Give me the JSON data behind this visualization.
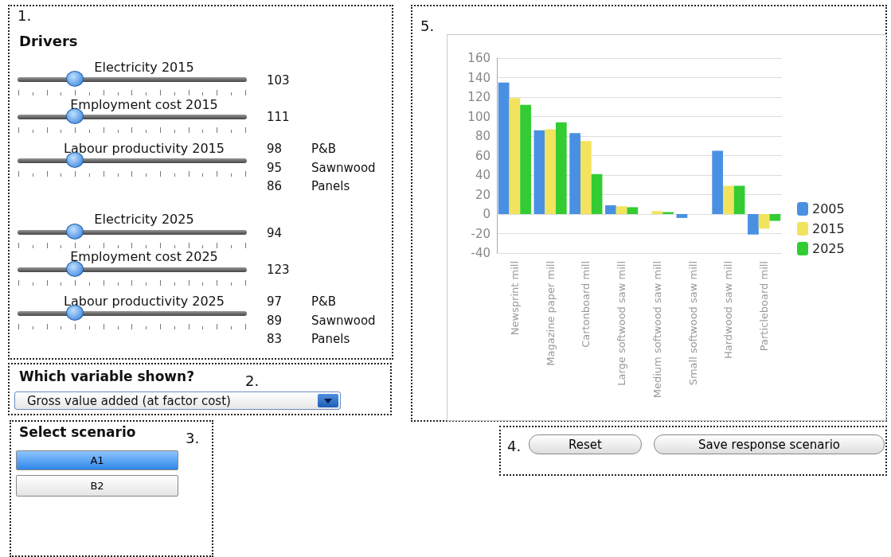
{
  "chart_data": [
    {
      "type": "other",
      "title": "Drivers",
      "annotations": [
        "1.",
        "Electricity 2015",
        "103",
        "Employment cost 2015",
        "111",
        "Labour productivity 2015",
        "98",
        "P&B",
        "95",
        "Sawnwood",
        "86",
        "Panels",
        "Electricity 2025",
        "94",
        "Employment cost 2025",
        "123",
        "Labour productivity 2025",
        "97",
        "P&B",
        "89",
        "Sawnwood",
        "83",
        "Panels"
      ]
    },
    {
      "type": "other",
      "title": "Which variable shown?",
      "annotations": [
        "2.",
        "Gross value added (at factor cost)"
      ]
    },
    {
      "type": "other",
      "title": "Select scenario",
      "annotations": [
        "3.",
        "A1",
        "B2"
      ]
    },
    {
      "type": "other",
      "annotations": [
        "4.",
        "Reset",
        "Save response scenario"
      ]
    },
    {
      "type": "bar",
      "annotations": [
        "5."
      ],
      "categories": [
        "Newsprint mill",
        "Magazine paper mill",
        "Cartonboard mill",
        "Large softwood saw mill",
        "Medium softwood saw mill",
        "Small softwood saw mill",
        "Hardwood saw mill",
        "Particleboard mill"
      ],
      "series": [
        {
          "name": "2005",
          "color": "#4a90e2",
          "values": [
            135,
            86,
            83,
            9,
            0,
            -4,
            65,
            -21
          ]
        },
        {
          "name": "2015",
          "color": "#f2e35e",
          "values": [
            119,
            87,
            75,
            8,
            3,
            0,
            29,
            -15
          ]
        },
        {
          "name": "2025",
          "color": "#33cc33",
          "values": [
            112,
            94,
            41,
            7,
            2,
            0,
            29,
            -7
          ]
        }
      ],
      "ylim": [
        -40,
        160
      ],
      "yticks": [
        -40,
        -20,
        0,
        20,
        40,
        60,
        80,
        100,
        120,
        140,
        160
      ],
      "grid": "y",
      "legend": "right"
    }
  ]
}
